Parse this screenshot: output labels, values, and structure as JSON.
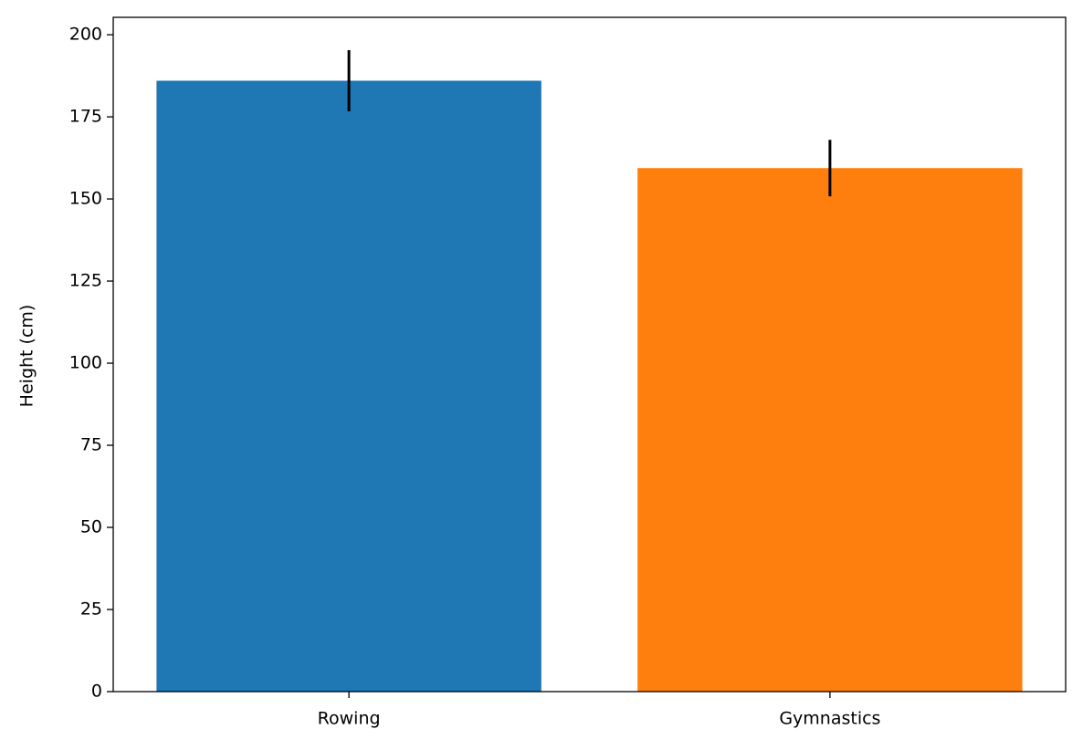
{
  "chart_data": {
    "type": "bar",
    "ylabel": "Height (cm)",
    "categories": [
      "Rowing",
      "Gymnastics"
    ],
    "values": [
      186,
      159.4
    ],
    "errors": [
      9.3,
      8.6
    ],
    "colors": [
      "#1f77b4",
      "#ff7f0e"
    ],
    "error_color": "#000000",
    "ylim": [
      0,
      205.3
    ],
    "yticks": [
      0,
      25,
      50,
      75,
      100,
      125,
      150,
      175,
      200
    ],
    "grid": false
  }
}
